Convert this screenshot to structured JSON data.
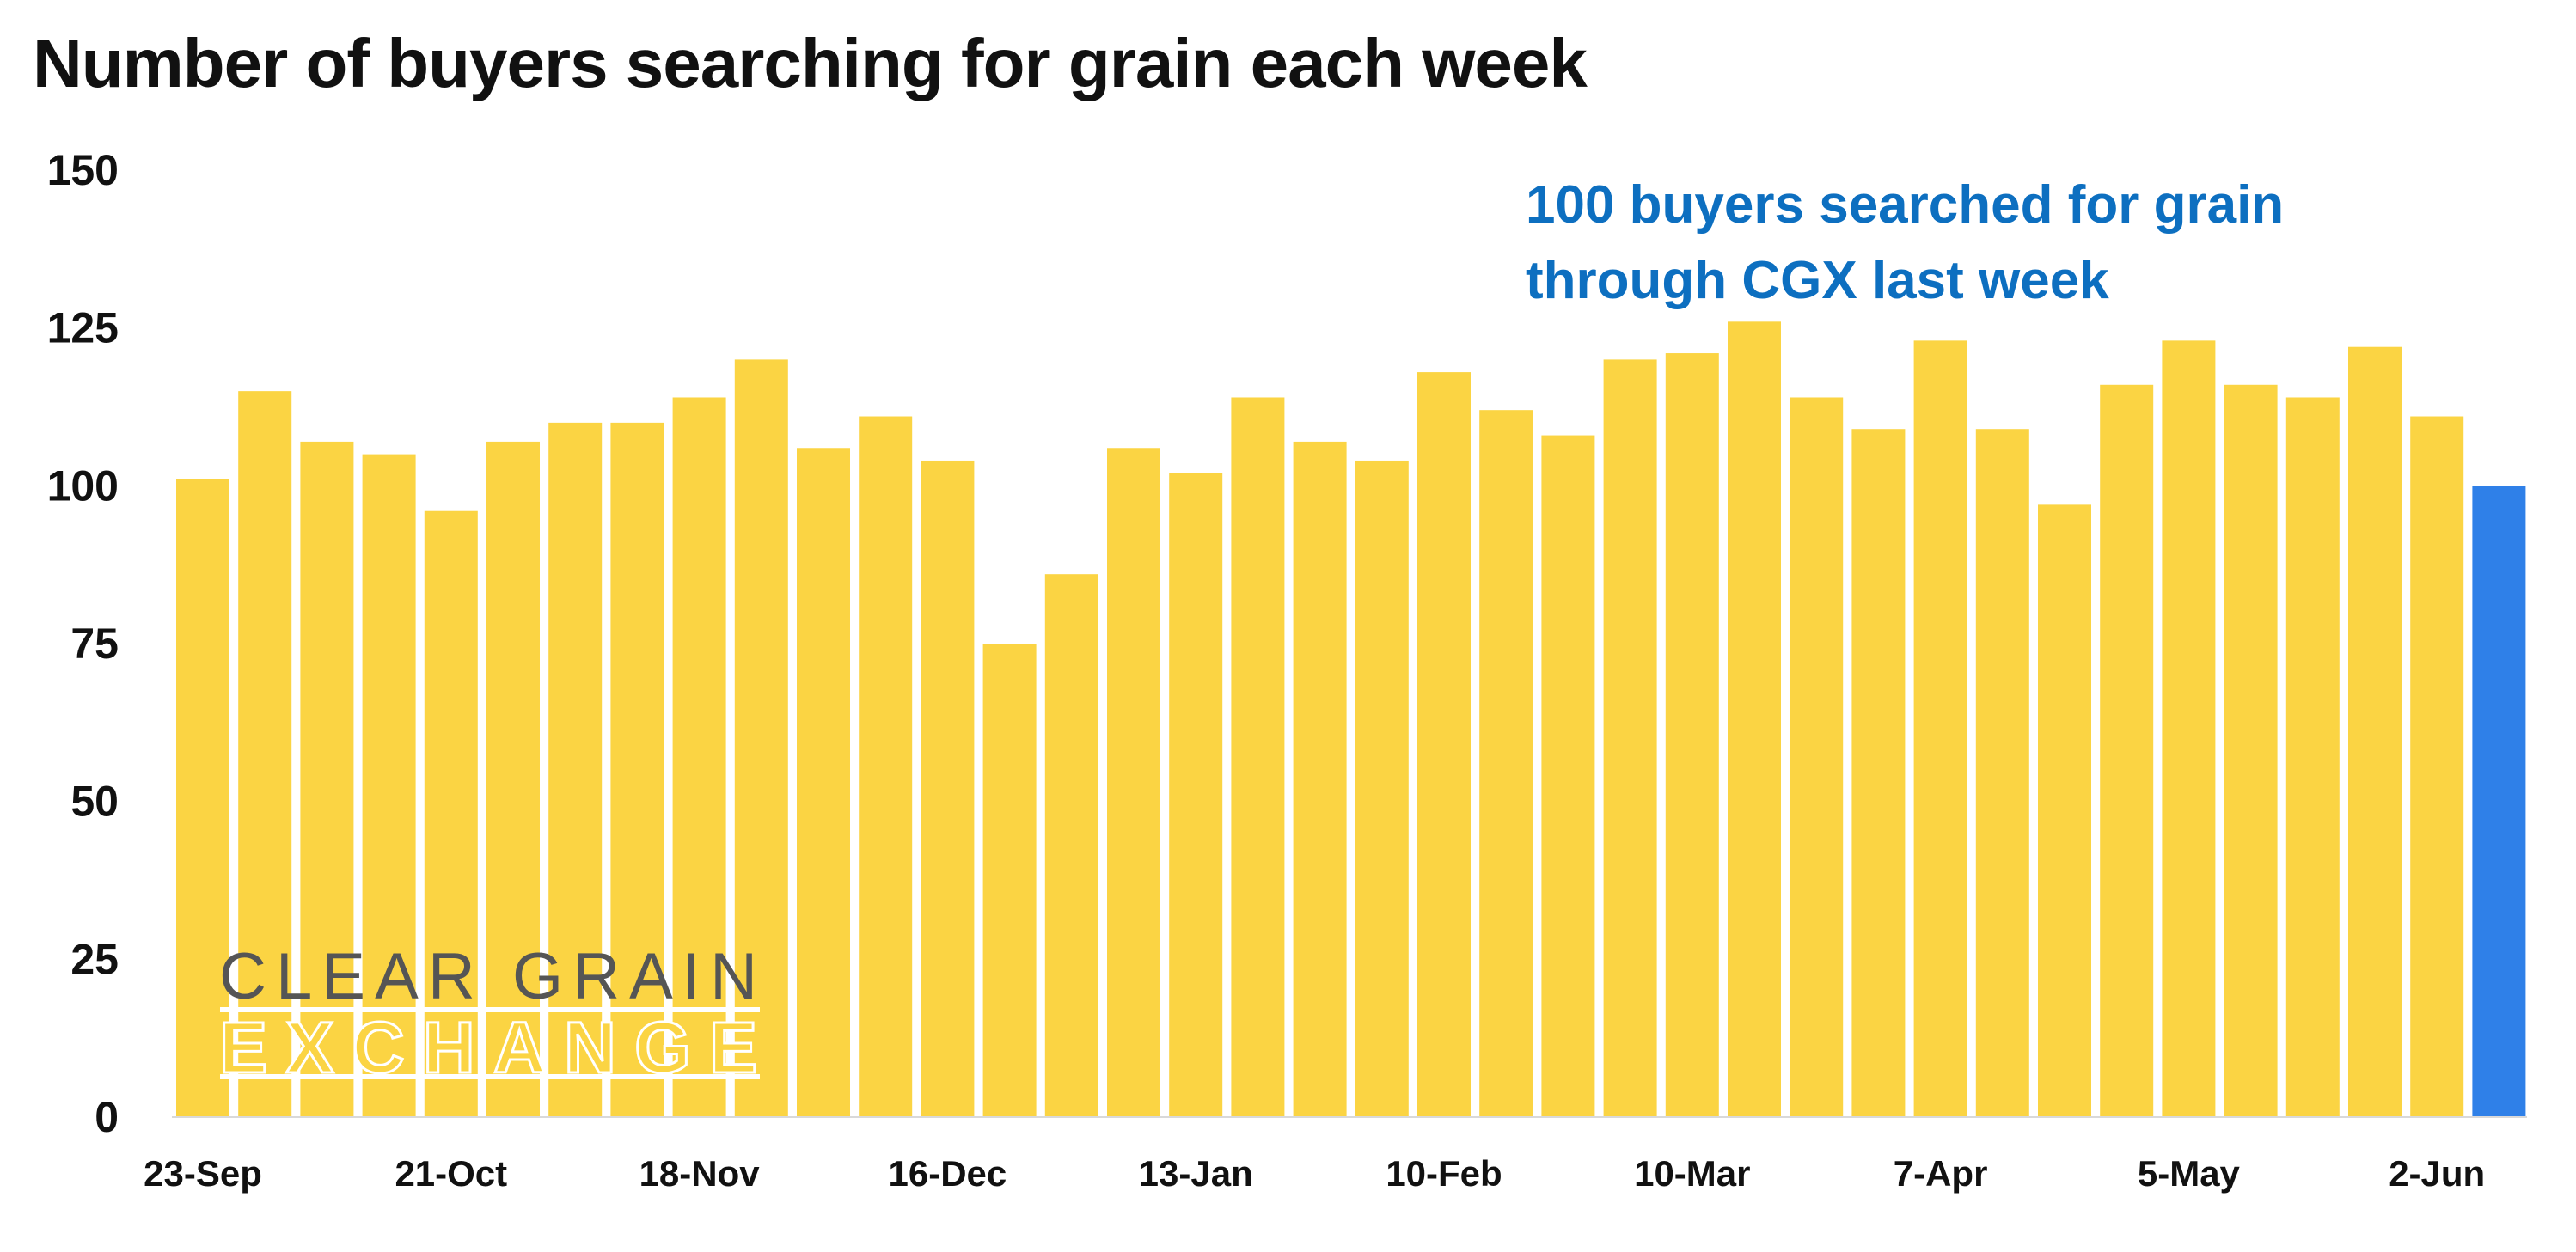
{
  "chart_data": {
    "type": "bar",
    "title": "Number of buyers searching for grain each week",
    "xlabel": "",
    "ylabel": "",
    "ylim": [
      0,
      150
    ],
    "yticks": [
      "0",
      "25",
      "50",
      "75",
      "100",
      "125",
      "150"
    ],
    "grid": false,
    "legend": "none",
    "categories": [
      "23-Sep",
      "30-Sep",
      "7-Oct",
      "14-Oct",
      "21-Oct",
      "28-Oct",
      "4-Nov",
      "11-Nov",
      "18-Nov",
      "25-Nov",
      "2-Dec",
      "9-Dec",
      "16-Dec",
      "23-Dec",
      "30-Dec",
      "6-Jan",
      "13-Jan",
      "20-Jan",
      "27-Jan",
      "3-Feb",
      "10-Feb",
      "17-Feb",
      "24-Feb",
      "3-Mar",
      "10-Mar",
      "17-Mar",
      "24-Mar",
      "31-Mar",
      "7-Apr",
      "14-Apr",
      "21-Apr",
      "28-Apr",
      "5-May",
      "12-May",
      "19-May",
      "26-May",
      "2-Jun",
      "9-Jun"
    ],
    "xtick_labels": [
      "23-Sep",
      "21-Oct",
      "18-Nov",
      "16-Dec",
      "13-Jan",
      "10-Feb",
      "10-Mar",
      "7-Apr",
      "5-May",
      "2-Jun"
    ],
    "values": [
      101,
      115,
      107,
      105,
      96,
      107,
      110,
      110,
      114,
      120,
      106,
      111,
      104,
      75,
      86,
      106,
      102,
      114,
      107,
      104,
      118,
      112,
      108,
      120,
      121,
      126,
      114,
      109,
      123,
      109,
      97,
      116,
      123,
      116,
      114,
      122,
      111,
      100
    ],
    "colors": {
      "default": "#fbd443",
      "highlight": "#2f80e8"
    },
    "highlight_index": 37,
    "annotation": [
      "100 buyers searched for grain",
      "through CGX last week"
    ]
  },
  "logo": {
    "line1": "CLEAR GRAIN",
    "line2": "EXCHANGE"
  }
}
